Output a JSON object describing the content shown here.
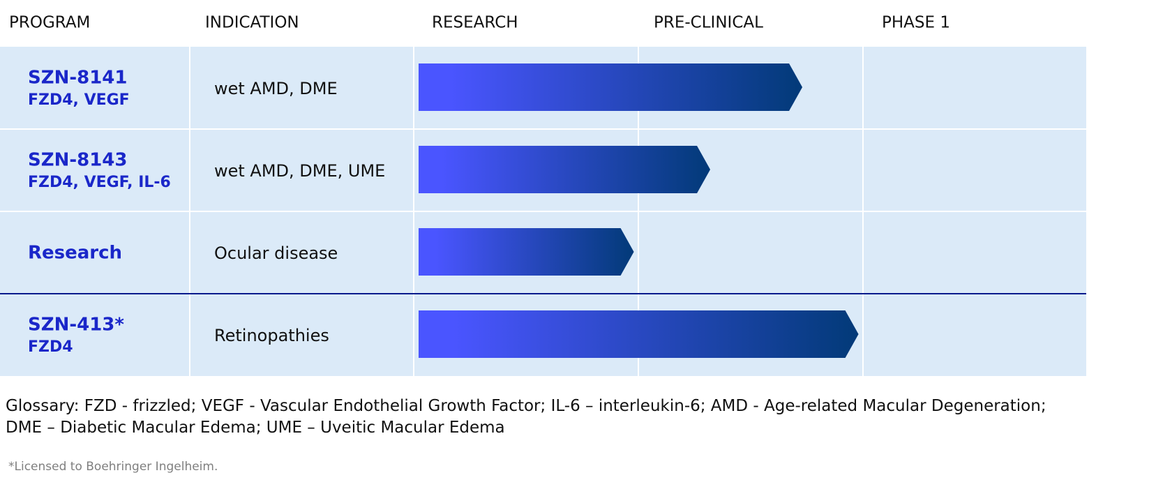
{
  "chart_data": {
    "type": "bar",
    "columns": [
      "PROGRAM",
      "INDICATION",
      "RESEARCH",
      "PRE-CLINICAL",
      "PHASE 1"
    ],
    "stages": [
      "RESEARCH",
      "PRE-CLINICAL",
      "PHASE 1"
    ],
    "xlim": [
      0,
      3
    ],
    "rows": [
      {
        "program": "SZN-8141",
        "targets": "FZD4, VEGF",
        "indication": "wet AMD, DME",
        "progress": 1.73
      },
      {
        "program": "SZN-8143",
        "targets": "FZD4, VEGF, IL-6",
        "indication": "wet AMD, DME, UME",
        "progress": 1.32
      },
      {
        "program": "Research",
        "targets": "",
        "indication": "Ocular disease",
        "progress": 0.98
      },
      {
        "program": "SZN-413*",
        "targets": "FZD4",
        "indication": "Retinopathies",
        "progress": 1.98
      }
    ],
    "separator_before_row": 3
  },
  "glossary": [
    "Glossary: FZD - frizzled; VEGF - Vascular Endothelial Growth Factor; IL-6 – interleukin-6; AMD - Age-related Macular Degeneration;",
    "DME – Diabetic Macular Edema; UME – Uveitic Macular Edema"
  ],
  "footnote": "*Licensed to Boehringer Ingelheim.",
  "colors": {
    "row_background": "#dbeaf8",
    "grid_line": "#ffffff",
    "header_text": "#111111",
    "program_text": "#1a27c9",
    "indication_text": "#111111",
    "bar_start": "#4a55ff",
    "bar_end": "#023a78",
    "separator": "#0a1a8c"
  }
}
